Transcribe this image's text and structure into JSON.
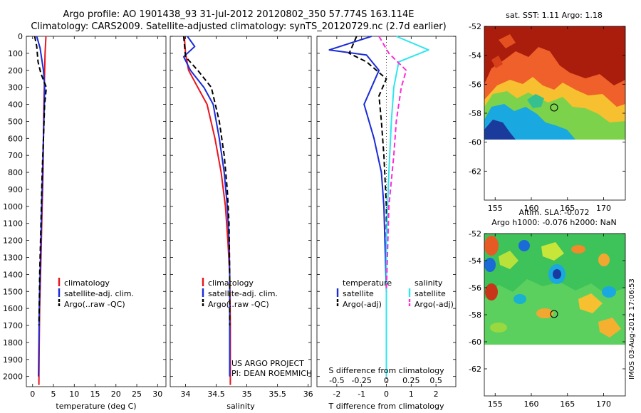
{
  "title_line1": "Argo profile: AO 1901438_93 31-Jul-2012 20120802_350 57.774S 163.114E",
  "title_line2": "Climatology: CARS2009. Satellite-adjusted climatology: synTS_20120729.nc (2.7d earlier)",
  "side_stamp": "IMOS 03-Aug-2012 17:06:53",
  "colors": {
    "climatology": "#e8141e",
    "satellite": "#1a2bd8",
    "argo": "#000000",
    "sal_satellite": "#2fe6ec",
    "sal_argo": "#ff2ad8"
  },
  "chart_data": [
    {
      "type": "line",
      "panel": "temperature",
      "xlabel": "temperature (deg C)",
      "ylabel": "",
      "xlim": [
        -1.5,
        32
      ],
      "ylim": [
        2060,
        0
      ],
      "xticks": [
        0,
        5,
        10,
        15,
        20,
        25,
        30
      ],
      "yticks": [
        0,
        100,
        200,
        300,
        400,
        500,
        600,
        700,
        800,
        900,
        1000,
        1100,
        1200,
        1300,
        1400,
        1500,
        1600,
        1700,
        1800,
        1900,
        2000
      ],
      "legend_labels": [
        "climatology",
        "satellite-adj. clim.",
        "Argo(..raw -QC)"
      ],
      "series": [
        {
          "name": "climatology",
          "style": "solid",
          "color": "#e8141e",
          "x": [
            3.2,
            3.0,
            2.9,
            2.8,
            2.7,
            2.6,
            2.5,
            2.3,
            2.1,
            1.9,
            1.7,
            1.6,
            1.5
          ],
          "y": [
            0,
            100,
            200,
            300,
            400,
            600,
            800,
            1000,
            1200,
            1400,
            1600,
            1800,
            2050
          ]
        },
        {
          "name": "satellite-adj. clim.",
          "style": "solid",
          "color": "#1a2bd8",
          "x": [
            1.0,
            1.8,
            2.6,
            2.9,
            2.8,
            2.6,
            2.4,
            2.2,
            2.0,
            1.8,
            1.6,
            1.5,
            1.4
          ],
          "y": [
            0,
            70,
            200,
            300,
            400,
            600,
            800,
            1000,
            1200,
            1400,
            1600,
            1800,
            2000
          ]
        },
        {
          "name": "Argo(..raw -QC)",
          "style": "dashed",
          "color": "#000000",
          "x": [
            0.5,
            1.0,
            1.3,
            2.0,
            3.3,
            2.9,
            2.6,
            2.3,
            2.1,
            1.9,
            1.7,
            1.6,
            1.5
          ],
          "y": [
            0,
            60,
            150,
            220,
            300,
            400,
            600,
            800,
            1000,
            1200,
            1400,
            1600,
            1700
          ]
        }
      ]
    },
    {
      "type": "line",
      "panel": "salinity",
      "xlabel": "salinity",
      "xlim": [
        33.75,
        36.05
      ],
      "ylim": [
        2060,
        0
      ],
      "xticks": [
        34,
        34.5,
        35,
        35.5,
        36
      ],
      "legend_labels": [
        "climatology",
        "satellite-adj. clim.",
        "Argo(..raw -QC)"
      ],
      "annotation": [
        "US ARGO PROJECT",
        "PI: DEAN ROEMMICH"
      ],
      "series": [
        {
          "name": "climatology",
          "style": "solid",
          "color": "#e8141e",
          "x": [
            33.98,
            34.0,
            34.05,
            34.2,
            34.35,
            34.48,
            34.58,
            34.65,
            34.69,
            34.72,
            34.73,
            34.73
          ],
          "y": [
            0,
            100,
            200,
            300,
            400,
            600,
            800,
            1000,
            1200,
            1400,
            1700,
            2050
          ]
        },
        {
          "name": "satellite-adj. clim.",
          "style": "solid",
          "color": "#1a2bd8",
          "x": [
            34.03,
            34.15,
            33.97,
            34.08,
            34.3,
            34.45,
            34.55,
            34.63,
            34.68,
            34.71,
            34.72,
            34.72,
            34.72
          ],
          "y": [
            0,
            60,
            120,
            200,
            300,
            400,
            600,
            800,
            1000,
            1200,
            1400,
            1700,
            2000
          ]
        },
        {
          "name": "Argo(..raw -QC)",
          "style": "dashed",
          "color": "#000000",
          "x": [
            33.97,
            34.0,
            34.2,
            34.42,
            34.55,
            34.63,
            34.68,
            34.71,
            34.72,
            34.72
          ],
          "y": [
            0,
            120,
            200,
            300,
            500,
            700,
            900,
            1100,
            1400,
            1700
          ]
        }
      ]
    },
    {
      "type": "line",
      "panel": "difference",
      "xlabel": "T difference from climatology",
      "top_axis_label": "S difference from climatology",
      "xlim": [
        -2.8,
        2.8
      ],
      "ylim": [
        2060,
        0
      ],
      "xticks": [
        -2,
        -1,
        0,
        1,
        2
      ],
      "top_tick_labels": [
        "-0.5",
        "-0.25",
        "0",
        "0.25",
        "0.5"
      ],
      "top_ticks_T": [
        -2,
        -1,
        0,
        1,
        2
      ],
      "legend_heading_left": "temperature",
      "legend_heading_right": "salinity",
      "legend_labels_left": [
        "satellite",
        "Argo(-adj)"
      ],
      "legend_labels_right": [
        "satellite",
        "Argo(-adj)"
      ],
      "series": [
        {
          "name": "temperature satellite",
          "style": "solid",
          "color": "#1a2bd8",
          "x": [
            -0.6,
            -2.3,
            -0.8,
            -0.3,
            -0.6,
            -0.9,
            -0.5,
            -0.2,
            -0.1,
            0,
            0
          ],
          "y": [
            0,
            80,
            110,
            200,
            300,
            400,
            600,
            800,
            1000,
            1500,
            2000
          ]
        },
        {
          "name": "temperature Argo(-adj)",
          "style": "dashed",
          "color": "#000000",
          "x": [
            -1.2,
            -1.5,
            -0.8,
            0,
            -0.3,
            -0.2,
            -0.1,
            0,
            0
          ],
          "y": [
            0,
            100,
            150,
            250,
            350,
            500,
            700,
            1000,
            1700
          ]
        },
        {
          "name": "salinity satellite",
          "style": "solid",
          "color": "#2fe6ec",
          "x": [
            0.4,
            1.7,
            0.5,
            0.3,
            0.2,
            0.1,
            0,
            0
          ],
          "y": [
            0,
            80,
            150,
            300,
            500,
            800,
            1200,
            2000
          ]
        },
        {
          "name": "salinity Argo(-adj)",
          "style": "dashed",
          "color": "#ff2ad8",
          "x": [
            -0.3,
            0.1,
            0.8,
            0.6,
            0.4,
            0.3,
            0.1,
            0
          ],
          "y": [
            0,
            100,
            200,
            300,
            500,
            700,
            1000,
            1500
          ]
        }
      ]
    },
    {
      "type": "heatmap",
      "panel": "sst_map",
      "title": "sat. SST: 1.11 Argo: 1.18",
      "xlim": [
        153.5,
        173
      ],
      "ylim": [
        -64,
        -52
      ],
      "data_lat_range": [
        -60,
        -52
      ],
      "xticks": [
        155,
        160,
        165,
        170
      ],
      "yticks": [
        -52,
        -54,
        -56,
        -58,
        -60,
        -62
      ],
      "float_position": [
        163.114,
        -57.774
      ]
    },
    {
      "type": "heatmap",
      "panel": "sla_map",
      "title": "Altim. SLA: -0.072",
      "subtitle": "Argo h1000: -0.076 h2000: NaN",
      "xlim": [
        153.5,
        173
      ],
      "ylim": [
        -64,
        -52
      ],
      "data_lat_range": [
        -60,
        -52
      ],
      "xticks": [
        155,
        160,
        165,
        170
      ],
      "yticks": [
        -52,
        -54,
        -56,
        -58,
        -60,
        -62
      ],
      "float_position": [
        163.114,
        -57.774
      ]
    }
  ]
}
